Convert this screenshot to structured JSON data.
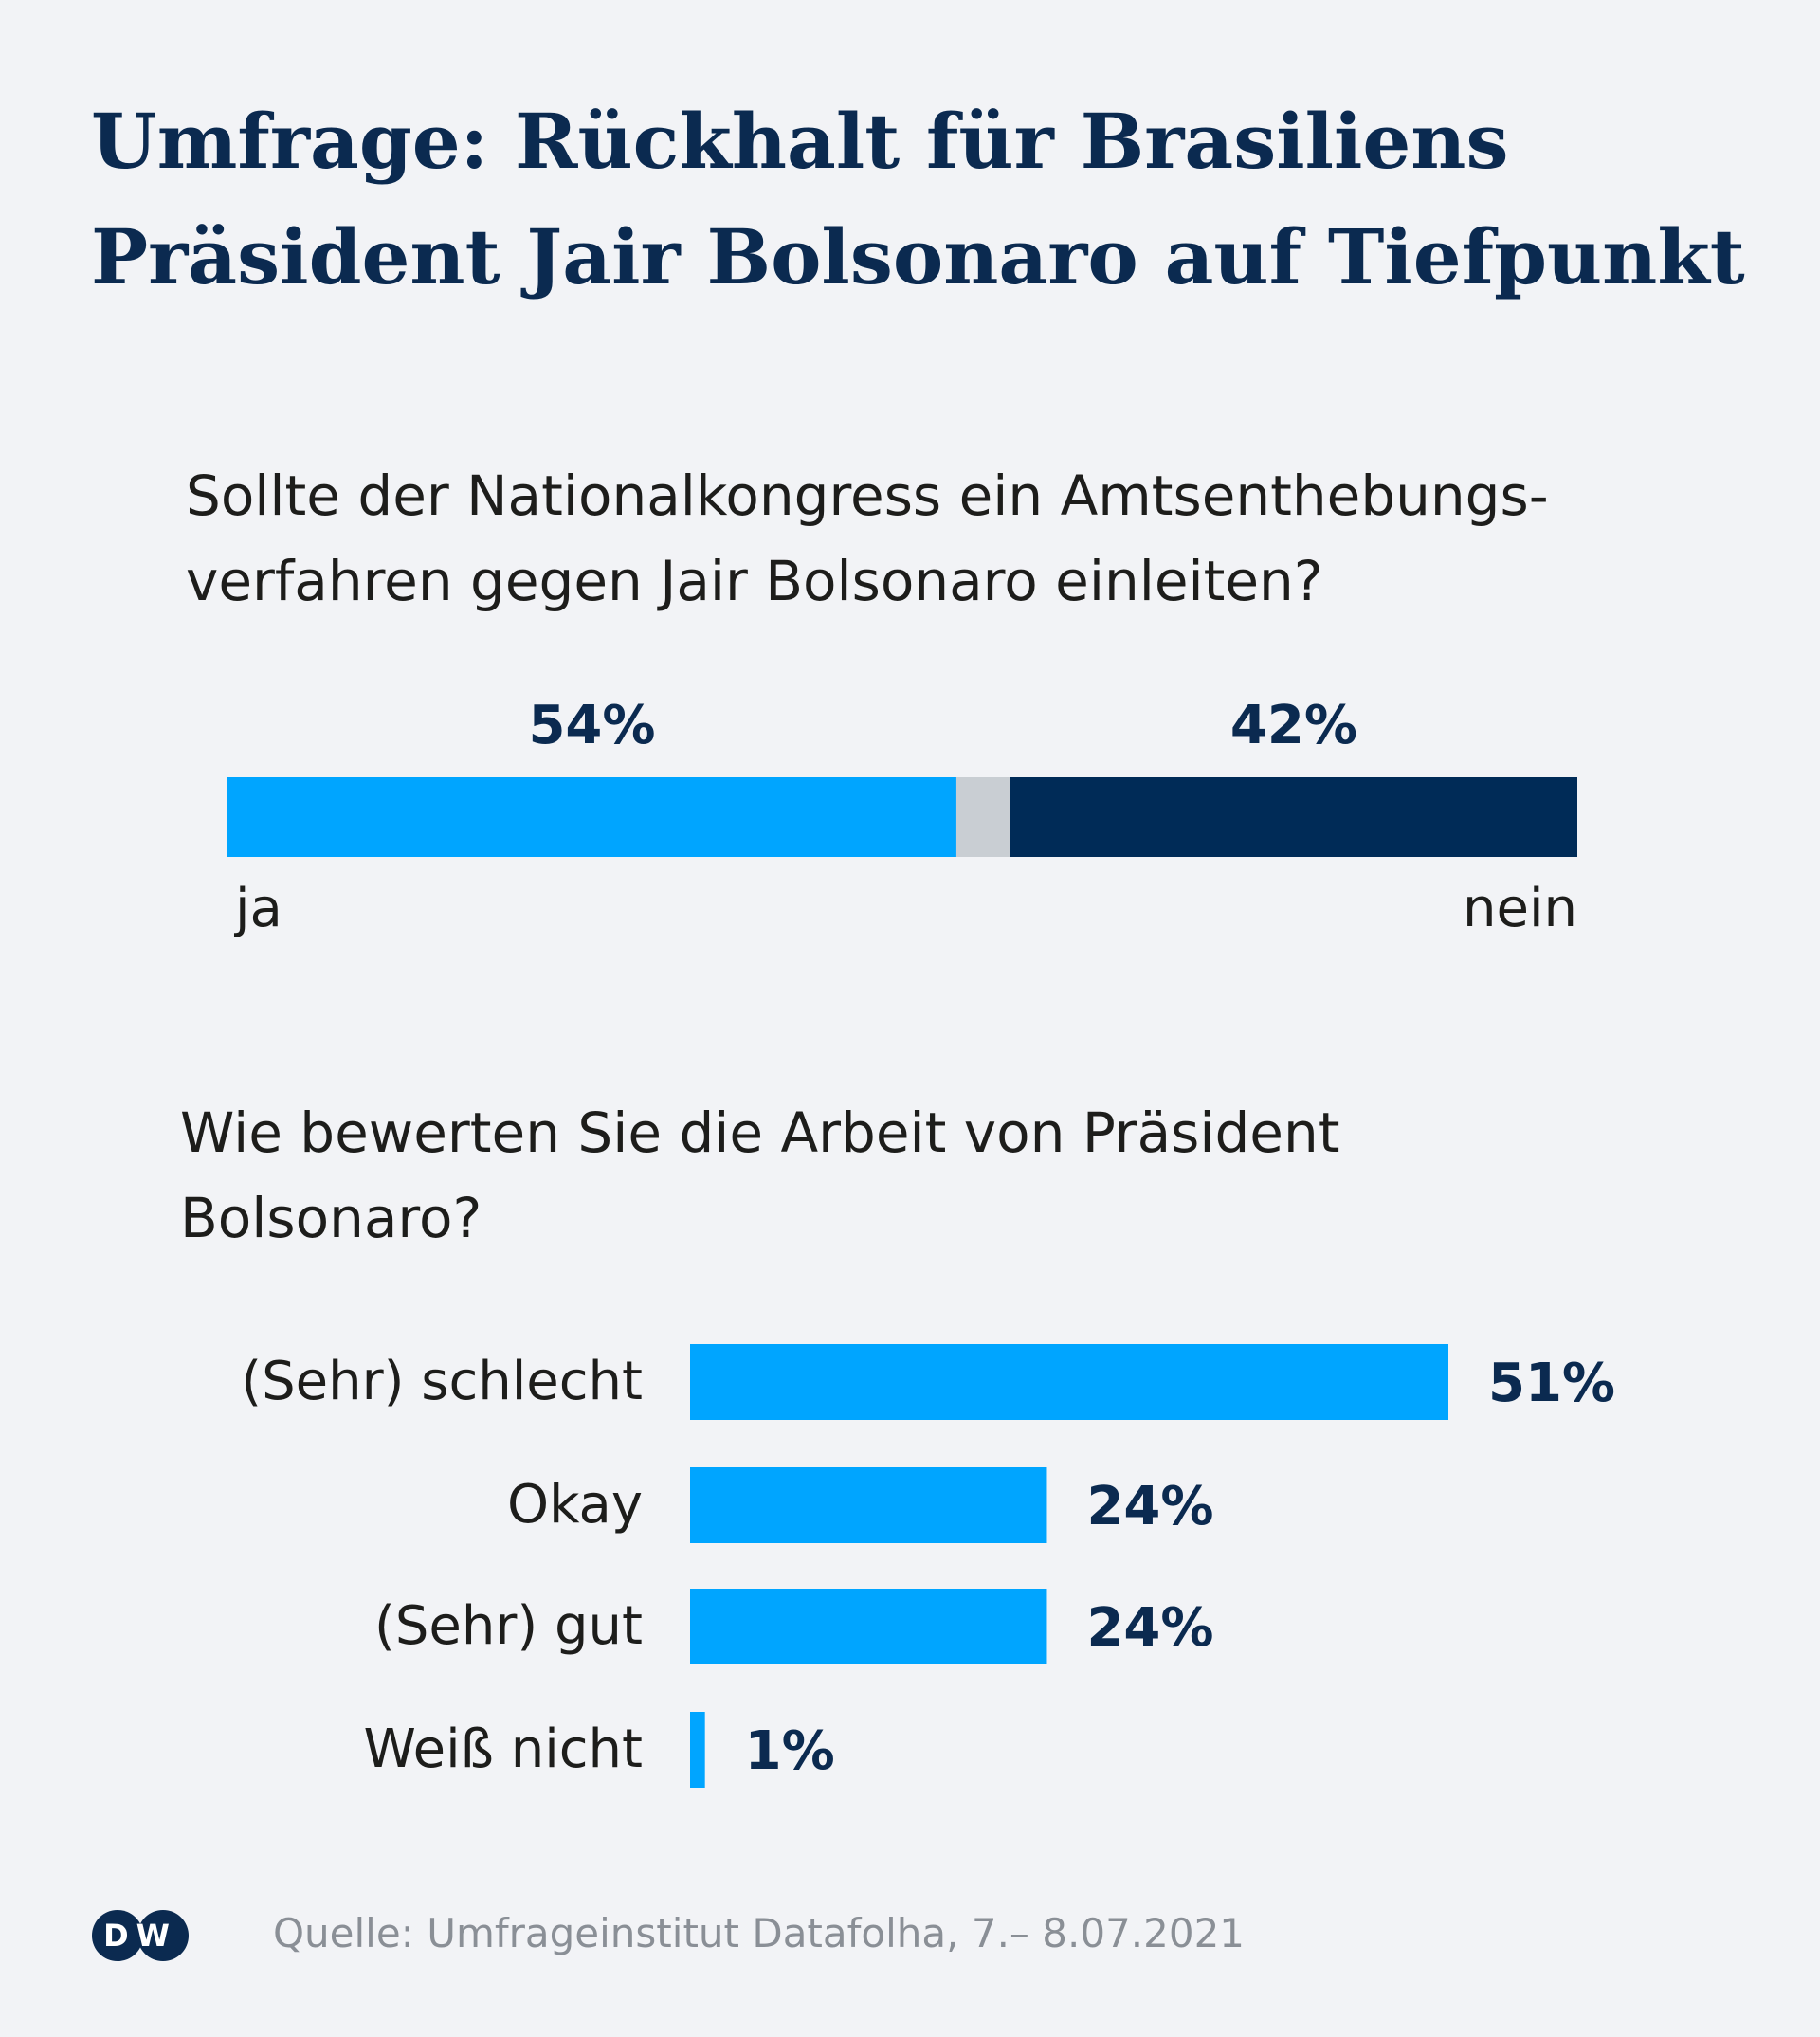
{
  "title_lines": [
    "Umfrage: Rückhalt für Brasiliens",
    "Präsident Jair Bolsonaro auf Tiefpunkt"
  ],
  "colors": {
    "light_blue": "#00a5ff",
    "dark_blue": "#002b57",
    "gray": "#c9ced3",
    "label_dark": "#0b2a50",
    "text": "#1d1d1b",
    "source": "#8a8f96"
  },
  "chart_data": [
    {
      "type": "bar",
      "orientation": "stacked-horizontal",
      "title_lines": [
        "Sollte der Nationalkongress ein Amtsenthebungs-",
        "verfahren gegen Jair Bolsonaro einleiten?"
      ],
      "segments": [
        {
          "name": "ja",
          "value": 54,
          "label": "54%",
          "color": "light_blue",
          "show_label": true
        },
        {
          "name": "",
          "value": 4,
          "label": "",
          "color": "gray",
          "show_label": false
        },
        {
          "name": "nein",
          "value": 42,
          "label": "42%",
          "color": "dark_blue",
          "show_label": true
        }
      ],
      "left_label": "ja",
      "right_label": "nein",
      "total": 100
    },
    {
      "type": "bar",
      "orientation": "horizontal",
      "title_lines": [
        "Wie bewerten Sie die Arbeit von Präsident",
        "Bolsonaro?"
      ],
      "categories": [
        "(Sehr) schlecht",
        "Okay",
        "(Sehr) gut",
        "Weiß nicht"
      ],
      "values": [
        51,
        24,
        24,
        1
      ],
      "labels": [
        "51%",
        "24%",
        "24%",
        "1%"
      ],
      "xlim": [
        0,
        51
      ]
    }
  ],
  "footer": {
    "logo_text": "DW",
    "source": "Quelle: Umfrageinstitut Datafolha, 7.– 8.07.2021"
  }
}
